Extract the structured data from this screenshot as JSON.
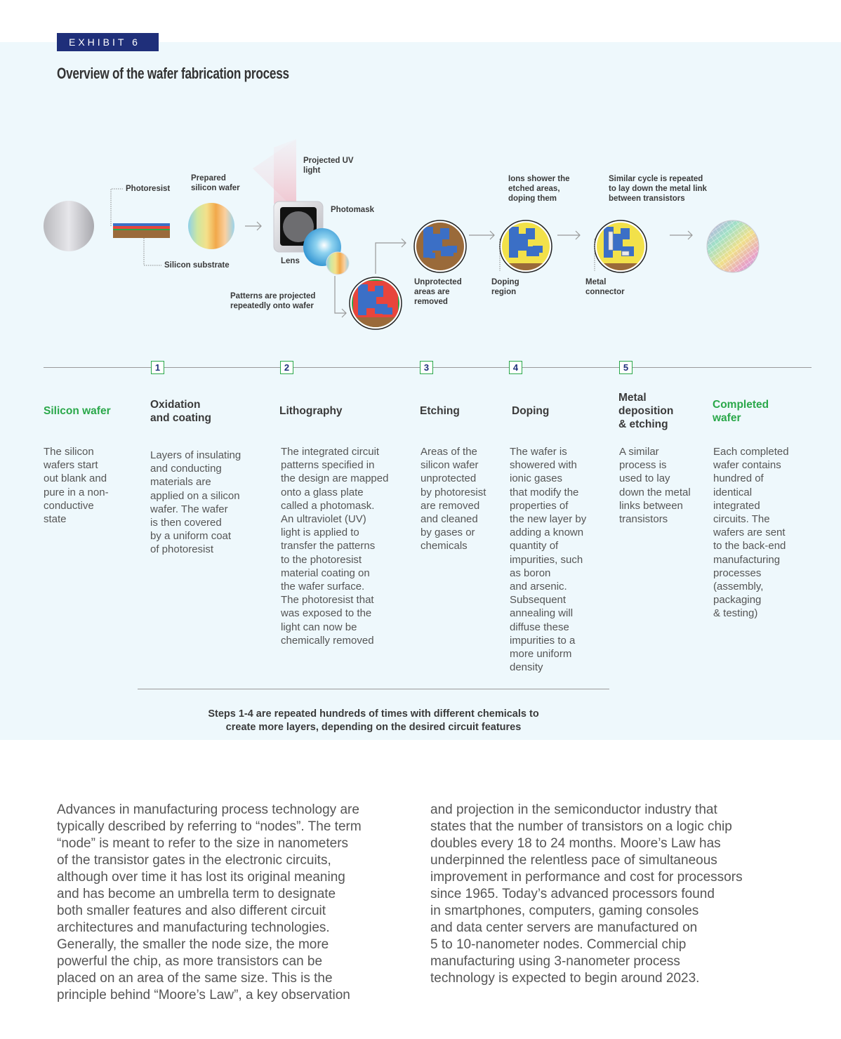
{
  "exhibit": {
    "tag": "EXHIBIT 6",
    "title": "Overview of the wafer fabrication process"
  },
  "diagram": {
    "labels": {
      "photoresist": "Photoresist",
      "prepared_wafer": "Prepared\nsilicon wafer",
      "silicon_substrate": "Silicon substrate",
      "projected_uv": "Projected UV\nlight",
      "photomask": "Photomask",
      "lens": "Lens",
      "patterns_projected": "Patterns are projected\nrepeatedly onto wafer",
      "unprotected_removed": "Unprotected\nareas are\nremoved",
      "ions_shower": "Ions shower the\netched areas,\ndoping them",
      "doping_region": "Doping\nregion",
      "similar_cycle": "Similar cycle is repeated\nto lay down the metal link\nbetween transistors",
      "metal_connector": "Metal\nconnector"
    },
    "colors": {
      "green": "#2aa84a",
      "navy": "#1f2f7a",
      "blue": "#3b6fc6",
      "yellow": "#f2e14a",
      "brown": "#9a6a3a",
      "red": "#e8453c"
    }
  },
  "steps": [
    {
      "num": "",
      "title": "Silicon wafer",
      "desc": "The silicon\nwafers start\nout blank and\npure in a non-\nconductive\nstate"
    },
    {
      "num": "1",
      "title": "Oxidation\nand coating",
      "desc": "Layers of insulating\nand conducting\nmaterials are\napplied on a silicon\nwafer. The wafer\nis then covered\nby a uniform coat\nof photoresist"
    },
    {
      "num": "2",
      "title": "Lithography",
      "desc": "The integrated circuit\npatterns specified in\nthe design are mapped\nonto a glass plate\ncalled a photomask.\nAn ultraviolet (UV)\nlight is applied to\ntransfer the patterns\nto the photoresist\nmaterial coating on\nthe wafer surface.\nThe photoresist that\nwas exposed to the\nlight can now be\nchemically removed"
    },
    {
      "num": "3",
      "title": "Etching",
      "desc": "Areas of the\nsilicon wafer\nunprotected\nby photoresist\nare removed\nand cleaned\nby gases or\nchemicals"
    },
    {
      "num": "4",
      "title": "Doping",
      "desc": "The wafer is\nshowered with\nionic gases\nthat modify the\nproperties of\nthe new layer by\nadding a known\nquantity of\nimpurities, such\nas boron\nand arsenic.\nSubsequent\nannealing will\ndiffuse these\nimpurities to a\nmore uniform\ndensity"
    },
    {
      "num": "5",
      "title": "Metal\ndeposition\n& etching",
      "desc": "A similar\nprocess is\nused to lay\ndown the metal\nlinks between\ntransistors"
    },
    {
      "num": "",
      "title": "Completed\nwafer",
      "desc": "Each completed\nwafer contains\nhundred of\nidentical\nintegrated\ncircuits. The\nwafers are sent\nto the back-end\nmanufacturing\nprocesses\n(assembly,\npackaging\n& testing)"
    }
  ],
  "steps_note": "Steps 1-4  are repeated hundreds of times with different chemicals to\ncreate more layers, depending on the desired circuit features",
  "body": {
    "col1": "Advances in manufacturing process technology are\ntypically described by referring to “nodes”. The term\n“node” is meant to refer to the size in nanometers\nof the transistor gates in the electronic circuits,\nalthough over time it has lost its original meaning\nand has become an umbrella term to designate\nboth smaller features and also different circuit\narchitectures and manufacturing technologies.\nGenerally, the smaller the node size, the more\npowerful the chip, as more transistors can be\nplaced on an area of the same size. This is the\nprinciple behind “Moore’s Law”, a key observation",
    "col2": "and projection in the semiconductor industry that\nstates that the number of transistors on a logic chip\ndoubles every 18 to 24 months. Moore’s Law has\nunderpinned the relentless pace of simultaneous\nimprovement in performance and cost for processors\nsince 1965. Today’s advanced processors found\nin smartphones, computers, gaming consoles\nand data center servers are manufactured on\n5 to 10-nanometer nodes. Commercial chip\nmanufacturing using 3-nanometer process\ntechnology is expected to begin around 2023."
  }
}
